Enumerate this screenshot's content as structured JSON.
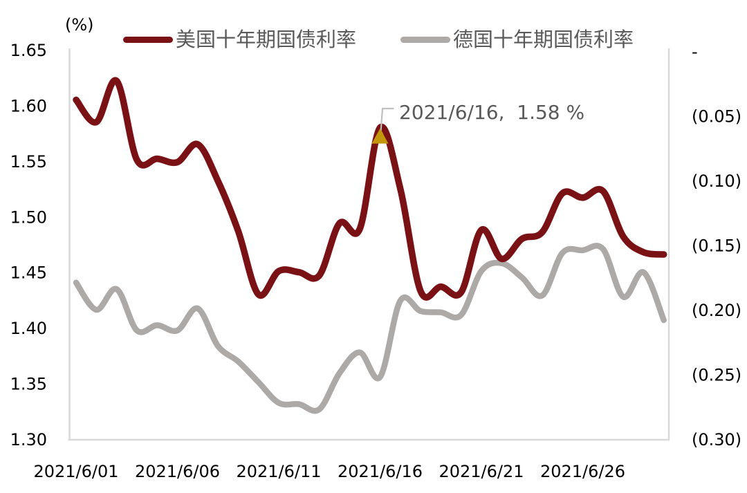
{
  "chart_data": {
    "type": "line",
    "unit_label": "(%)",
    "legend_position": "top",
    "grid": false,
    "x": [
      "2021/6/01",
      "2021/6/02",
      "2021/6/03",
      "2021/6/04",
      "2021/6/05",
      "2021/6/06",
      "2021/6/07",
      "2021/6/08",
      "2021/6/09",
      "2021/6/10",
      "2021/6/11",
      "2021/6/12",
      "2021/6/13",
      "2021/6/14",
      "2021/6/15",
      "2021/6/16",
      "2021/6/17",
      "2021/6/18",
      "2021/6/19",
      "2021/6/20",
      "2021/6/21",
      "2021/6/22",
      "2021/6/23",
      "2021/6/24",
      "2021/6/25",
      "2021/6/26",
      "2021/6/27",
      "2021/6/28",
      "2021/6/29",
      "2021/6/30"
    ],
    "x_tick_labels": [
      "2021/6/01",
      "2021/6/06",
      "2021/6/11",
      "2021/6/16",
      "2021/6/21",
      "2021/6/26"
    ],
    "series": [
      {
        "name": "美国十年期国债利率",
        "axis": "left",
        "color": "#7A1215",
        "values": [
          1.605,
          1.585,
          1.622,
          1.551,
          1.552,
          1.549,
          1.565,
          1.532,
          1.487,
          1.43,
          1.451,
          1.45,
          1.447,
          1.494,
          1.489,
          1.58,
          1.525,
          1.433,
          1.437,
          1.432,
          1.488,
          1.462,
          1.48,
          1.486,
          1.521,
          1.517,
          1.523,
          1.482,
          1.468,
          1.466
        ]
      },
      {
        "name": "德国十年期国债利率",
        "axis": "right",
        "color": "#ACA9A7",
        "values": [
          -0.179,
          -0.2,
          -0.184,
          -0.216,
          -0.212,
          -0.216,
          -0.199,
          -0.228,
          -0.24,
          -0.256,
          -0.272,
          -0.273,
          -0.277,
          -0.249,
          -0.233,
          -0.252,
          -0.193,
          -0.201,
          -0.202,
          -0.204,
          -0.17,
          -0.164,
          -0.175,
          -0.189,
          -0.156,
          -0.154,
          -0.153,
          -0.19,
          -0.171,
          -0.208
        ]
      }
    ],
    "left_axis": {
      "ticks": [
        "1.65",
        "1.60",
        "1.55",
        "1.50",
        "1.45",
        "1.40",
        "1.35",
        "1.30"
      ],
      "min": 1.3,
      "max": 1.65
    },
    "right_axis": {
      "ticks": [
        "-",
        "(0.05)",
        "(0.10)",
        "(0.15)",
        "(0.20)",
        "(0.25)",
        "(0.30)"
      ],
      "min": -0.3,
      "max": 0
    },
    "annotation": {
      "text": "2021/6/16,  1.58 %",
      "date": "2021/6/16",
      "value": 1.58,
      "marker_color": "#C4960C",
      "leader_color": "#C0C0C0"
    },
    "axis_line_color": "#D9D9D9",
    "tick_label_color": "#000000",
    "legend_text_color": "#595959"
  }
}
